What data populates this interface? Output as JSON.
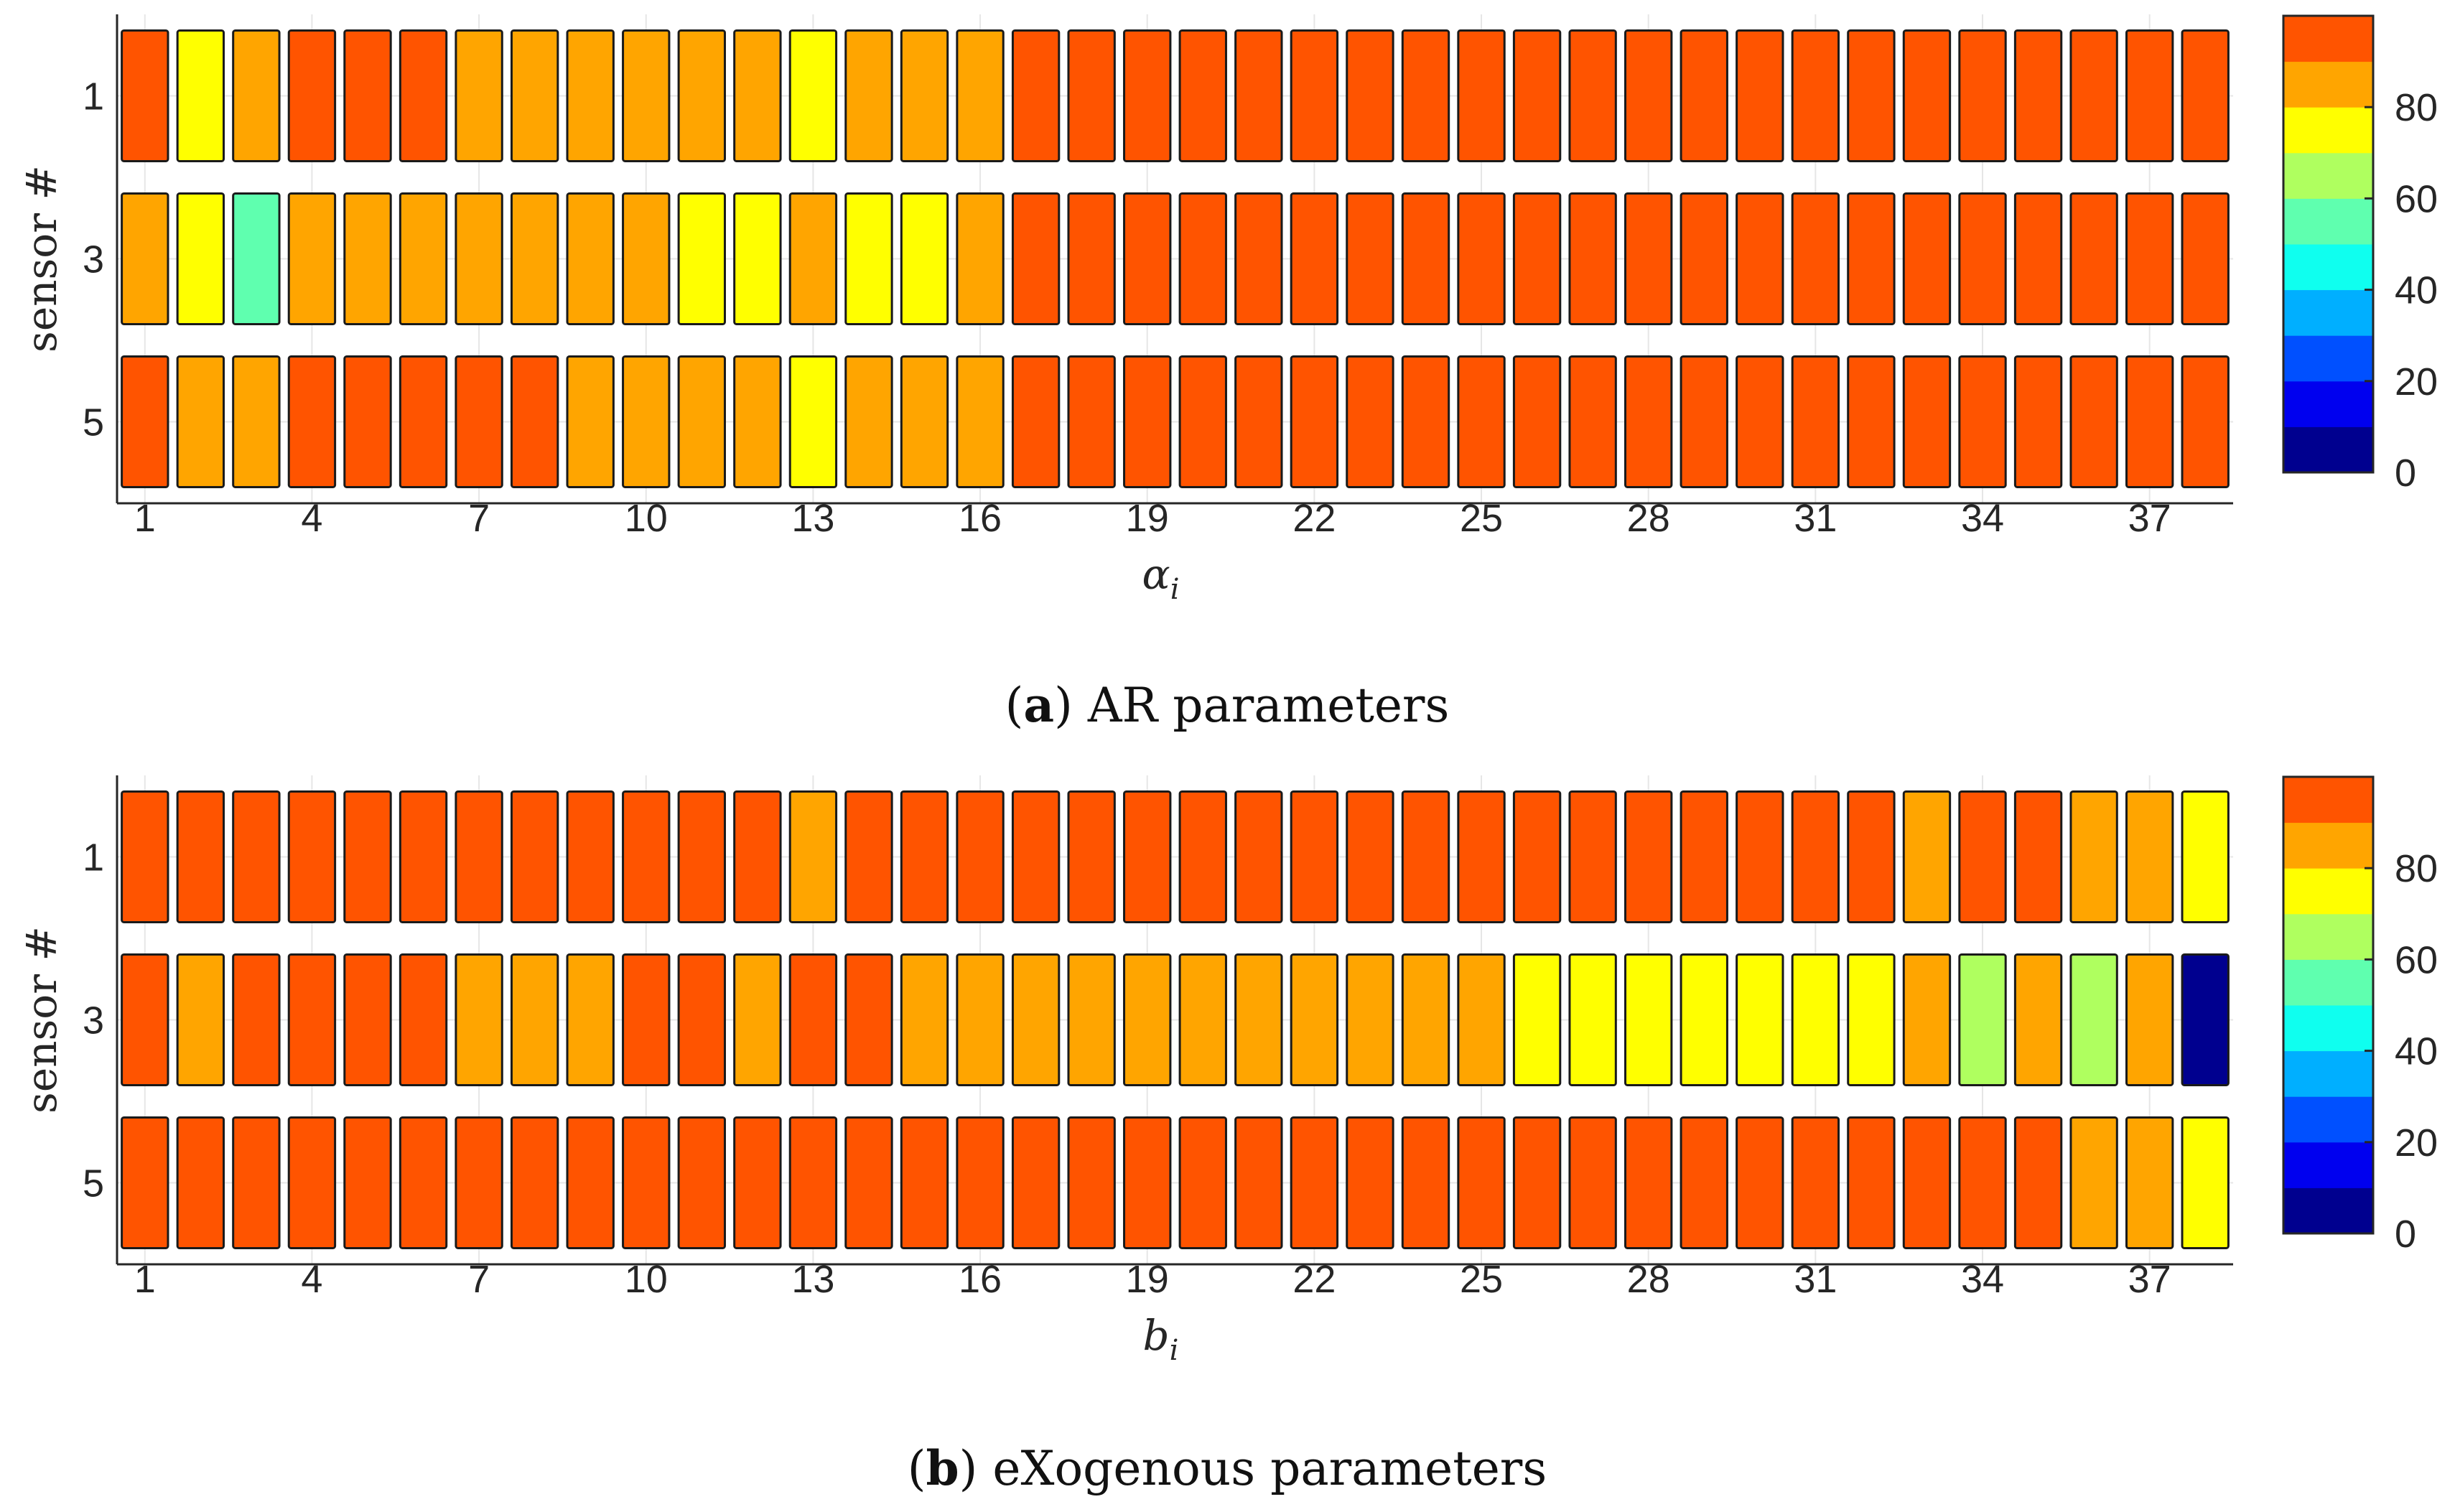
{
  "colormap": [
    "#00008F",
    "#0000EF",
    "#0050FF",
    "#00AFFF",
    "#0FFFEF",
    "#5FFFAF",
    "#AFFF5F",
    "#FFFF00",
    "#FFA500",
    "#FF5400"
  ],
  "chart_data": [
    {
      "type": "heatmap",
      "caption_letter": "a",
      "caption_text": " AR parameters",
      "xlabel": "α",
      "xlabel_sub": "i",
      "ylabel": "sensor #",
      "y_ticks": [
        "1",
        "3",
        "5"
      ],
      "x_ticks": [
        "1",
        "4",
        "7",
        "10",
        "13",
        "16",
        "19",
        "22",
        "25",
        "28",
        "31",
        "34",
        "37"
      ],
      "x_tick_positions": [
        1,
        4,
        7,
        10,
        13,
        16,
        19,
        22,
        25,
        28,
        31,
        34,
        37
      ],
      "colorbar_ticks": [
        "0",
        "20",
        "40",
        "60",
        "80"
      ],
      "colorbar_range": [
        0,
        100
      ],
      "rows": [
        {
          "sensor": 1,
          "values": [
            95,
            75,
            85,
            95,
            95,
            95,
            85,
            85,
            85,
            85,
            85,
            85,
            75,
            85,
            85,
            85,
            95,
            95,
            95,
            95,
            95,
            95,
            95,
            95,
            95,
            95,
            95,
            95,
            95,
            95,
            95,
            95,
            95,
            95,
            95,
            95,
            95,
            95
          ]
        },
        {
          "sensor": 3,
          "values": [
            85,
            75,
            55,
            85,
            85,
            85,
            85,
            85,
            85,
            85,
            75,
            75,
            85,
            75,
            75,
            85,
            95,
            95,
            95,
            95,
            95,
            95,
            95,
            95,
            95,
            95,
            95,
            95,
            95,
            95,
            95,
            95,
            95,
            95,
            95,
            95,
            95,
            95
          ]
        },
        {
          "sensor": 5,
          "values": [
            95,
            85,
            85,
            95,
            95,
            95,
            95,
            95,
            85,
            85,
            85,
            85,
            75,
            85,
            85,
            85,
            95,
            95,
            95,
            95,
            95,
            95,
            95,
            95,
            95,
            95,
            95,
            95,
            95,
            95,
            95,
            95,
            95,
            95,
            95,
            95,
            95,
            95
          ]
        }
      ]
    },
    {
      "type": "heatmap",
      "caption_letter": "b",
      "caption_text": " eXogenous parameters",
      "xlabel": "b",
      "xlabel_sub": "i",
      "ylabel": "sensor #",
      "y_ticks": [
        "1",
        "3",
        "5"
      ],
      "x_ticks": [
        "1",
        "4",
        "7",
        "10",
        "13",
        "16",
        "19",
        "22",
        "25",
        "28",
        "31",
        "34",
        "37"
      ],
      "x_tick_positions": [
        1,
        4,
        7,
        10,
        13,
        16,
        19,
        22,
        25,
        28,
        31,
        34,
        37
      ],
      "colorbar_ticks": [
        "0",
        "20",
        "40",
        "60",
        "80"
      ],
      "colorbar_range": [
        0,
        100
      ],
      "rows": [
        {
          "sensor": 1,
          "values": [
            95,
            95,
            95,
            95,
            95,
            95,
            95,
            95,
            95,
            95,
            95,
            95,
            85,
            95,
            95,
            95,
            95,
            95,
            95,
            95,
            95,
            95,
            95,
            95,
            95,
            95,
            95,
            95,
            95,
            95,
            95,
            95,
            85,
            95,
            95,
            85,
            85,
            75
          ]
        },
        {
          "sensor": 3,
          "values": [
            95,
            85,
            95,
            95,
            95,
            95,
            85,
            85,
            85,
            95,
            95,
            85,
            95,
            95,
            85,
            85,
            85,
            85,
            85,
            85,
            85,
            85,
            85,
            85,
            85,
            75,
            75,
            75,
            75,
            75,
            75,
            75,
            85,
            65,
            85,
            65,
            85,
            0
          ]
        },
        {
          "sensor": 5,
          "values": [
            95,
            95,
            95,
            95,
            95,
            95,
            95,
            95,
            95,
            95,
            95,
            95,
            95,
            95,
            95,
            95,
            95,
            95,
            95,
            95,
            95,
            95,
            95,
            95,
            95,
            95,
            95,
            95,
            95,
            95,
            95,
            95,
            95,
            95,
            95,
            85,
            85,
            75
          ]
        }
      ]
    }
  ]
}
